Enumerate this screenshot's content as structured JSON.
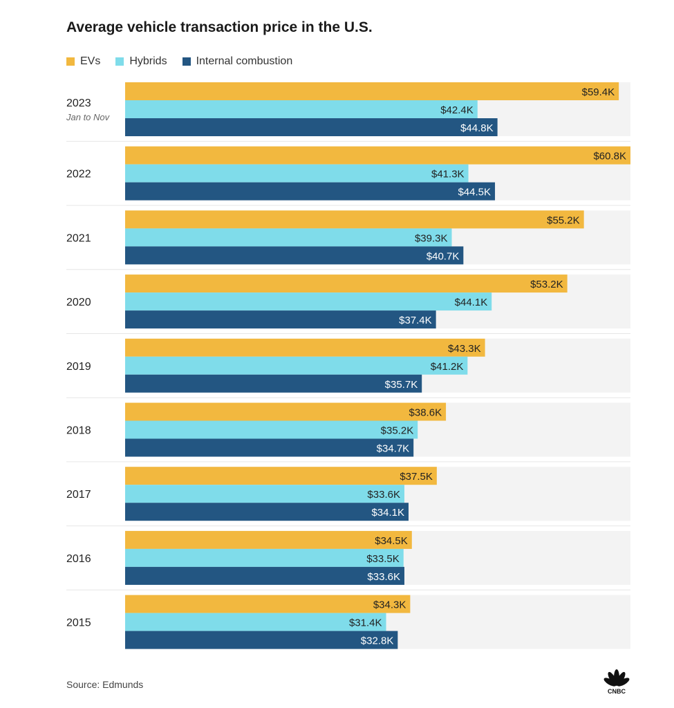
{
  "chart_data": {
    "type": "bar",
    "orientation": "horizontal",
    "title": "Average vehicle transaction price in the U.S.",
    "categories": [
      "2023",
      "2022",
      "2021",
      "2020",
      "2019",
      "2018",
      "2017",
      "2016",
      "2015"
    ],
    "category_notes": [
      "Jan to Nov",
      "",
      "",
      "",
      "",
      "",
      "",
      "",
      ""
    ],
    "series": [
      {
        "name": "EVs",
        "color": "#f2b83f",
        "values": [
          59.4,
          60.8,
          55.2,
          53.2,
          43.3,
          38.6,
          37.5,
          34.5,
          34.3
        ],
        "labels": [
          "$59.4K",
          "$60.8K",
          "$55.2K",
          "$53.2K",
          "$43.3K",
          "$38.6K",
          "$37.5K",
          "$34.5K",
          "$34.3K"
        ],
        "label_color": "#222222"
      },
      {
        "name": "Hybrids",
        "color": "#7fdcea",
        "values": [
          42.4,
          41.3,
          39.3,
          44.1,
          41.2,
          35.2,
          33.6,
          33.5,
          31.4
        ],
        "labels": [
          "$42.4K",
          "$41.3K",
          "$39.3K",
          "$44.1K",
          "$41.2K",
          "$35.2K",
          "$33.6K",
          "$33.5K",
          "$31.4K"
        ],
        "label_color": "#222222"
      },
      {
        "name": "Internal combustion",
        "color": "#235682",
        "values": [
          44.8,
          44.5,
          40.7,
          37.4,
          35.7,
          34.7,
          34.1,
          33.6,
          32.8
        ],
        "labels": [
          "$44.8K",
          "$44.5K",
          "$40.7K",
          "$37.4K",
          "$35.7K",
          "$34.7K",
          "$34.1K",
          "$33.6K",
          "$32.8K"
        ],
        "label_color": "#ffffff"
      }
    ],
    "xlim": [
      0,
      60.8
    ],
    "grid": false,
    "legend": "top-left",
    "source": "Source: Edmunds"
  },
  "logo": {
    "name": "cnbc-peacock-logo",
    "text": "CNBC"
  }
}
